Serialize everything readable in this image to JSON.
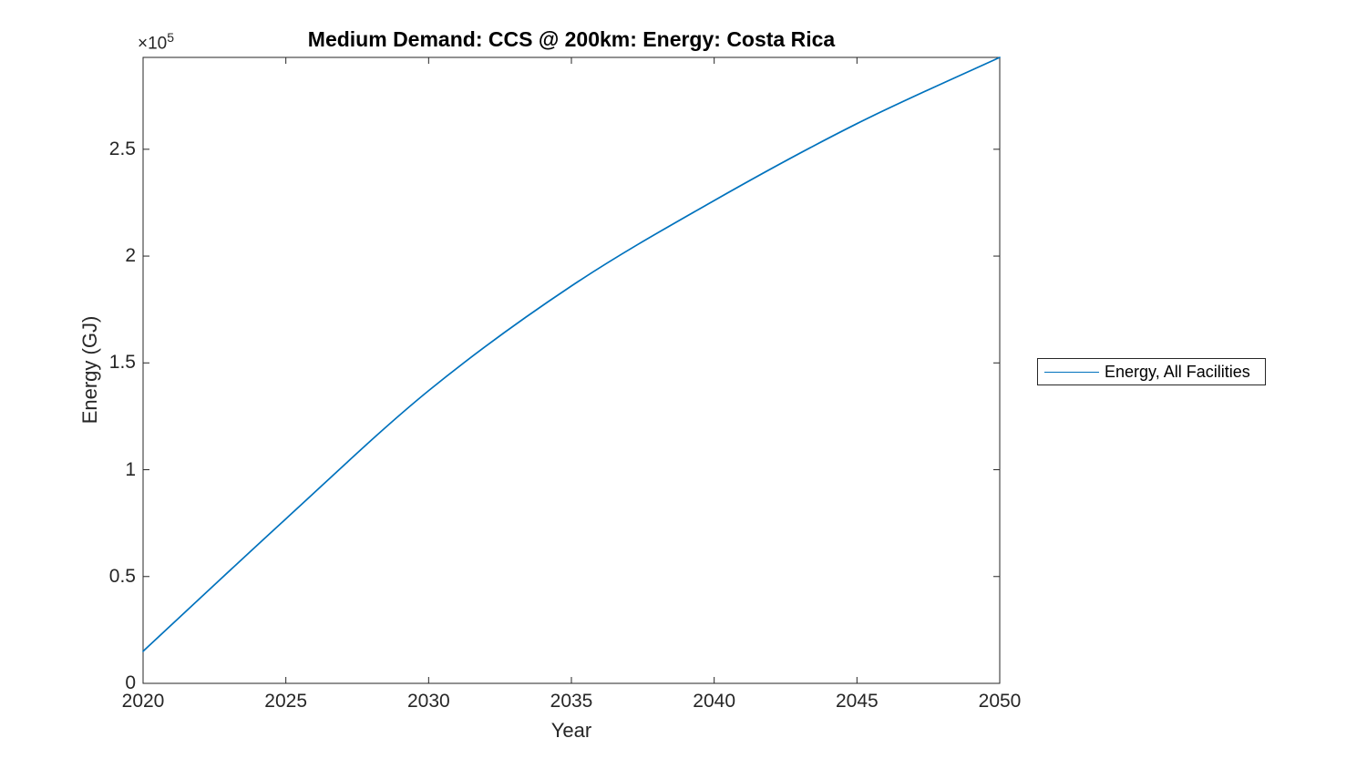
{
  "figure": {
    "title": "Medium Demand: CCS @ 200km: Energy: Costa Rica",
    "xlabel": "Year",
    "ylabel": "Energy (GJ)",
    "y_multiplier_base": "×10",
    "y_multiplier_exp": "5"
  },
  "legend": {
    "label": "Energy, All Facilities"
  },
  "colors": {
    "line": "#0072BD",
    "axes": "#262626",
    "background": "#ffffff"
  },
  "chart_data": {
    "type": "line",
    "title": "Medium Demand: CCS @ 200km: Energy: Costa Rica",
    "xlabel": "Year",
    "ylabel": "Energy (GJ)",
    "y_multiplier_label": "×10⁵",
    "xlim": [
      2020,
      2050
    ],
    "ylim": [
      0,
      293000
    ],
    "x_ticks": [
      2020,
      2025,
      2030,
      2035,
      2040,
      2045,
      2050
    ],
    "x_tick_labels": [
      "2020",
      "2025",
      "2030",
      "2035",
      "2040",
      "2045",
      "2050"
    ],
    "y_ticks": [
      0,
      50000,
      100000,
      150000,
      200000,
      250000
    ],
    "y_tick_labels": [
      "0",
      "0.5",
      "1",
      "1.5",
      "2",
      "2.5"
    ],
    "grid": false,
    "legend_position": "right-outside",
    "series": [
      {
        "name": "Energy, All Facilities",
        "color": "#0072BD",
        "x": [
          2020,
          2025,
          2030,
          2035,
          2040,
          2045,
          2050
        ],
        "y": [
          15000,
          77000,
          137000,
          186000,
          226000,
          262000,
          293000
        ]
      }
    ]
  }
}
